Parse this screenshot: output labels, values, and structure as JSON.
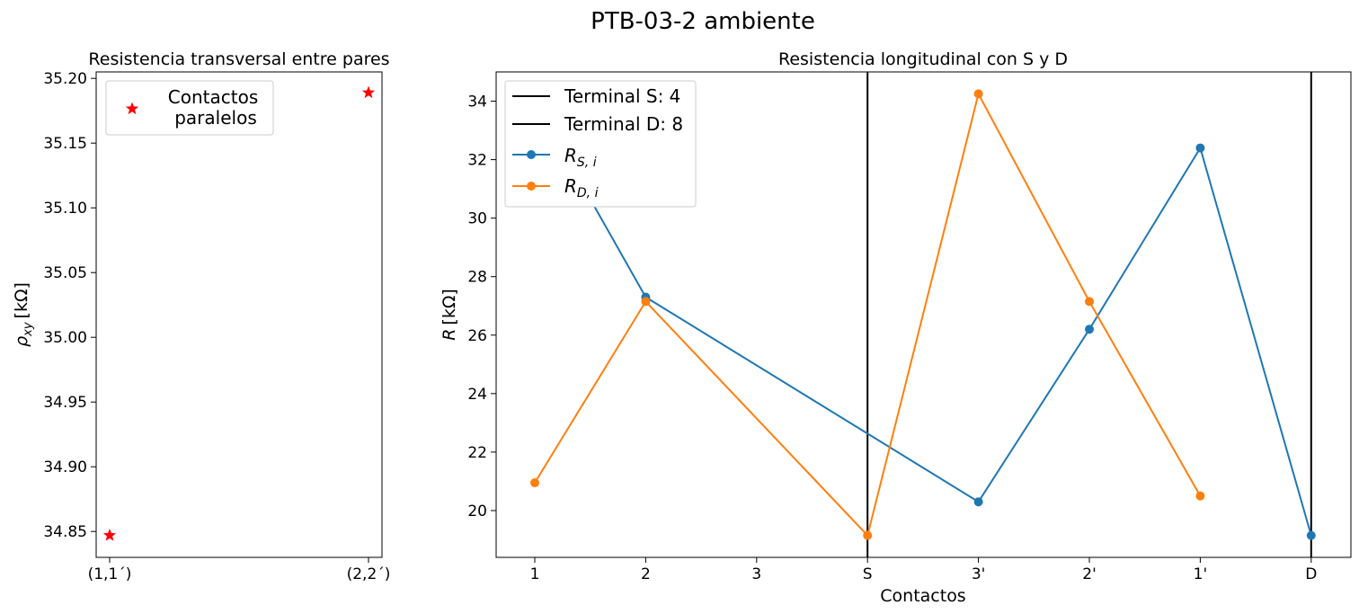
{
  "suptitle": "PTB-03-2 ambiente",
  "chart_data": [
    {
      "type": "scatter",
      "title": "Resistencia transversal entre pares",
      "xlabel": "",
      "ylabel": "ρ_xy [kΩ]",
      "ylabel_main": "ρ",
      "ylabel_sub": "xy",
      "ylabel_unit": "[kΩ]",
      "categories": [
        "(1,1´)",
        "(2,2´)"
      ],
      "series": [
        {
          "name": "Contactos\nparalelos",
          "name_lines": [
            "Contactos",
            "paralelos"
          ],
          "marker": "star",
          "color": "#ff0000",
          "values": [
            34.847,
            35.189
          ]
        }
      ],
      "ylim": [
        34.83,
        35.205
      ],
      "yticks": [
        34.85,
        34.9,
        34.95,
        35.0,
        35.05,
        35.1,
        35.15,
        35.2
      ],
      "ytick_labels": [
        "34.85",
        "34.90",
        "34.95",
        "35.00",
        "35.05",
        "35.10",
        "35.15",
        "35.20"
      ],
      "grid": false,
      "legend": "upper-left"
    },
    {
      "type": "line",
      "title": "Resistencia longitudinal con S y D",
      "xlabel": "Contactos",
      "ylabel": "R [kΩ]",
      "ylabel_main": "R",
      "ylabel_unit": "[kΩ]",
      "categories": [
        "1",
        "2",
        "3",
        "S",
        "3'",
        "2'",
        "1'",
        "D"
      ],
      "series": [
        {
          "name": "R_{S,i}",
          "name_main": "R",
          "name_sub": "S, i",
          "color": "#1f77b4",
          "marker": "circle",
          "points": [
            {
              "x": "1",
              "y": 34.0
            },
            {
              "x": "2",
              "y": 27.3
            },
            {
              "x": "3'",
              "y": 20.3
            },
            {
              "x": "2'",
              "y": 26.2
            },
            {
              "x": "1'",
              "y": 32.4
            },
            {
              "x": "D",
              "y": 19.15
            }
          ]
        },
        {
          "name": "R_{D,i}",
          "name_main": "R",
          "name_sub": "D, i",
          "color": "#ff7f0e",
          "marker": "circle",
          "points": [
            {
              "x": "1",
              "y": 20.95
            },
            {
              "x": "2",
              "y": 27.15
            },
            {
              "x": "S",
              "y": 19.15
            },
            {
              "x": "3'",
              "y": 34.25
            },
            {
              "x": "2'",
              "y": 27.15
            },
            {
              "x": "1'",
              "y": 20.5
            }
          ]
        }
      ],
      "vlines": [
        {
          "name": "Terminal S: 4",
          "x": "S",
          "color": "#000000"
        },
        {
          "name": "Terminal D: 8",
          "x": "D",
          "color": "#000000"
        }
      ],
      "ylim": [
        18.4,
        35.0
      ],
      "yticks": [
        20,
        22,
        24,
        26,
        28,
        30,
        32,
        34
      ],
      "ytick_labels": [
        "20",
        "22",
        "24",
        "26",
        "28",
        "30",
        "32",
        "34"
      ],
      "grid": false,
      "legend": "upper-left"
    }
  ]
}
